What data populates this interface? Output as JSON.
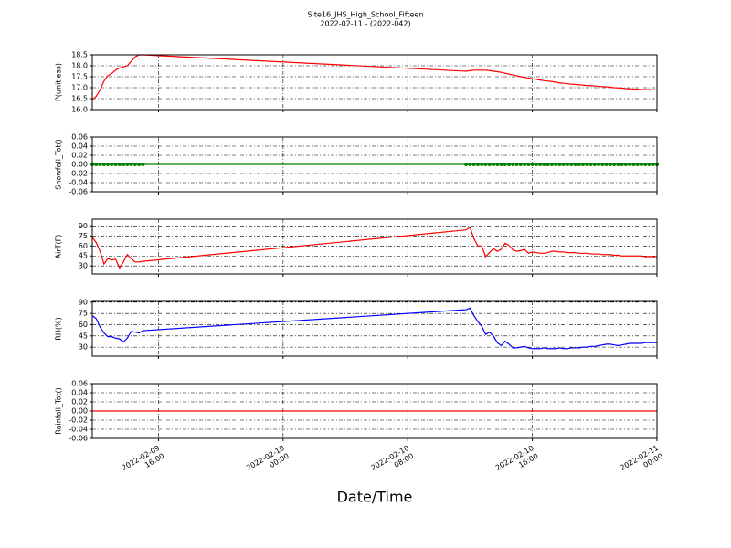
{
  "chart_data": {
    "type": "line",
    "title": "Site16_JHS_High_School_Fifteen",
    "subtitle": "2022-02-11 - (2022-042)",
    "x_label": "Date/Time",
    "grid": true,
    "xlim": [
      "2022-02-09 11:45",
      "2022-02-11 00:00"
    ],
    "xticks": [
      "2022-02-09 16:00",
      "2022-02-10 00:00",
      "2022-02-10 08:00",
      "2022-02-10 16:00",
      "2022-02-11 00:00"
    ],
    "x": [
      "2022-02-09 11:45",
      "2022-02-09 12:00",
      "2022-02-09 12:15",
      "2022-02-09 12:30",
      "2022-02-09 12:45",
      "2022-02-09 13:00",
      "2022-02-09 13:15",
      "2022-02-09 13:30",
      "2022-02-09 13:45",
      "2022-02-09 14:00",
      "2022-02-09 14:15",
      "2022-02-09 14:30",
      "2022-02-09 14:45",
      "2022-02-09 15:00",
      "2022-02-10 11:45",
      "2022-02-10 12:00",
      "2022-02-10 12:15",
      "2022-02-10 12:30",
      "2022-02-10 12:45",
      "2022-02-10 13:00",
      "2022-02-10 13:15",
      "2022-02-10 13:30",
      "2022-02-10 13:45",
      "2022-02-10 14:00",
      "2022-02-10 14:15",
      "2022-02-10 14:30",
      "2022-02-10 14:45",
      "2022-02-10 15:00",
      "2022-02-10 15:15",
      "2022-02-10 15:30",
      "2022-02-10 15:45",
      "2022-02-10 16:00",
      "2022-02-10 16:15",
      "2022-02-10 16:30",
      "2022-02-10 16:45",
      "2022-02-10 17:00",
      "2022-02-10 17:15",
      "2022-02-10 17:30",
      "2022-02-10 17:45",
      "2022-02-10 18:00",
      "2022-02-10 18:15",
      "2022-02-10 18:30",
      "2022-02-10 18:45",
      "2022-02-10 19:00",
      "2022-02-10 19:15",
      "2022-02-10 19:30",
      "2022-02-10 19:45",
      "2022-02-10 20:00",
      "2022-02-10 20:15",
      "2022-02-10 20:30",
      "2022-02-10 20:45",
      "2022-02-10 21:00",
      "2022-02-10 21:15",
      "2022-02-10 21:30",
      "2022-02-10 21:45",
      "2022-02-10 22:00",
      "2022-02-10 22:15",
      "2022-02-10 22:30",
      "2022-02-10 22:45",
      "2022-02-10 23:00",
      "2022-02-10 23:15",
      "2022-02-10 23:30",
      "2022-02-10 23:45",
      "2022-02-11 00:00"
    ],
    "panels": [
      {
        "y_label": "P(unitless)",
        "ylim": [
          16,
          18.5
        ],
        "yticks": [
          {
            "value": 16,
            "label": "16.0"
          },
          16.5,
          {
            "value": 17,
            "label": "17.0"
          },
          17.5,
          {
            "value": 18,
            "label": "18.0"
          },
          18.5
        ],
        "series": [
          {
            "color": "#ff0000",
            "marker": false,
            "values": [
              16.45,
              16.6,
              16.9,
              17.3,
              17.55,
              17.65,
              17.8,
              17.9,
              17.95,
              18.0,
              18.2,
              18.4,
              18.5,
              18.5,
              17.75,
              17.78,
              17.8,
              17.8,
              17.8,
              17.8,
              17.78,
              17.75,
              17.73,
              17.7,
              17.66,
              17.62,
              17.58,
              17.54,
              17.5,
              17.47,
              17.44,
              17.41,
              17.38,
              17.35,
              17.32,
              17.3,
              17.28,
              17.25,
              17.22,
              17.2,
              17.18,
              17.16,
              17.15,
              17.13,
              17.12,
              17.1,
              17.09,
              17.08,
              17.06,
              17.05,
              17.04,
              17.02,
              17.0,
              16.99,
              16.98,
              16.96,
              16.95,
              16.94,
              16.93,
              16.92,
              16.91,
              16.91,
              16.9,
              16.9
            ]
          }
        ]
      },
      {
        "y_label": "Snowfall_Tot()",
        "ylim": [
          -0.06,
          0.06
        ],
        "yticks": [
          -0.06,
          -0.04,
          -0.02,
          {
            "value": 0,
            "label": "0.00"
          },
          0.02,
          0.04,
          0.06
        ],
        "series": [
          {
            "color": "#008000",
            "marker": true,
            "values": [
              0,
              0,
              0,
              0,
              0,
              0,
              0,
              0,
              0,
              0,
              0,
              0,
              0,
              0,
              0,
              0,
              0,
              0,
              0,
              0,
              0,
              0,
              0,
              0,
              0,
              0,
              0,
              0,
              0,
              0,
              0,
              0,
              0,
              0,
              0,
              0,
              0,
              0,
              0,
              0,
              0,
              0,
              0,
              0,
              0,
              0,
              0,
              0,
              0,
              0,
              0,
              0,
              0,
              0,
              0,
              0,
              0,
              0,
              0,
              0,
              0,
              0,
              0,
              0
            ]
          }
        ]
      },
      {
        "y_label": "AirT(F)",
        "ylim": [
          18,
          100
        ],
        "yticks": [
          30,
          45,
          60,
          75,
          90
        ],
        "series": [
          {
            "color": "#ff0000",
            "marker": false,
            "values": [
              73,
              65,
              52,
              33,
              41,
              39,
              40,
              27,
              36,
              47,
              41,
              36,
              36,
              37,
              84,
              88,
              71,
              60,
              60,
              44,
              50,
              56,
              52,
              55,
              64,
              61,
              54,
              52,
              53,
              55,
              49,
              51,
              50,
              49,
              49,
              50,
              52,
              52,
              51,
              51,
              50,
              50,
              50,
              49,
              49,
              49,
              48,
              48,
              48,
              47,
              47,
              47,
              46,
              46,
              45,
              45,
              45,
              45,
              45,
              45,
              44,
              44,
              44,
              44
            ]
          }
        ]
      },
      {
        "y_label": "RH(%)",
        "ylim": [
          18,
          91
        ],
        "yticks": [
          30,
          45,
          60,
          75,
          90
        ],
        "series": [
          {
            "color": "#0000ff",
            "marker": false,
            "values": [
              72,
              68,
              57,
              49,
              44,
              44,
              42,
              41,
              37,
              42,
              51,
              50,
              49,
              52,
              80,
              82,
              72,
              64,
              58,
              47,
              50,
              45,
              36,
              32,
              38,
              34,
              29,
              29,
              30,
              31,
              29,
              28,
              28,
              28,
              29,
              28,
              28,
              28,
              29,
              28,
              28,
              29,
              29,
              29,
              30,
              30,
              31,
              31,
              32,
              33,
              34,
              34,
              33,
              32,
              33,
              34,
              35,
              35,
              35,
              35,
              36,
              36,
              36,
              36
            ]
          }
        ]
      },
      {
        "y_label": "Rainfall_Tot()",
        "ylim": [
          -0.06,
          0.06
        ],
        "yticks": [
          -0.06,
          -0.04,
          -0.02,
          {
            "value": 0,
            "label": "0.00"
          },
          0.02,
          0.04,
          0.06
        ],
        "series": [
          {
            "color": "#ff0000",
            "marker": false,
            "values": [
              0,
              0,
              0,
              0,
              0,
              0,
              0,
              0,
              0,
              0,
              0,
              0,
              0,
              0,
              0,
              0,
              0,
              0,
              0,
              0,
              0,
              0,
              0,
              0,
              0,
              0,
              0,
              0,
              0,
              0,
              0,
              0,
              0,
              0,
              0,
              0,
              0,
              0,
              0,
              0,
              0,
              0,
              0,
              0,
              0,
              0,
              0,
              0,
              0,
              0,
              0,
              0,
              0,
              0,
              0,
              0,
              0,
              0,
              0,
              0,
              0,
              0,
              0,
              0
            ]
          }
        ]
      }
    ]
  }
}
